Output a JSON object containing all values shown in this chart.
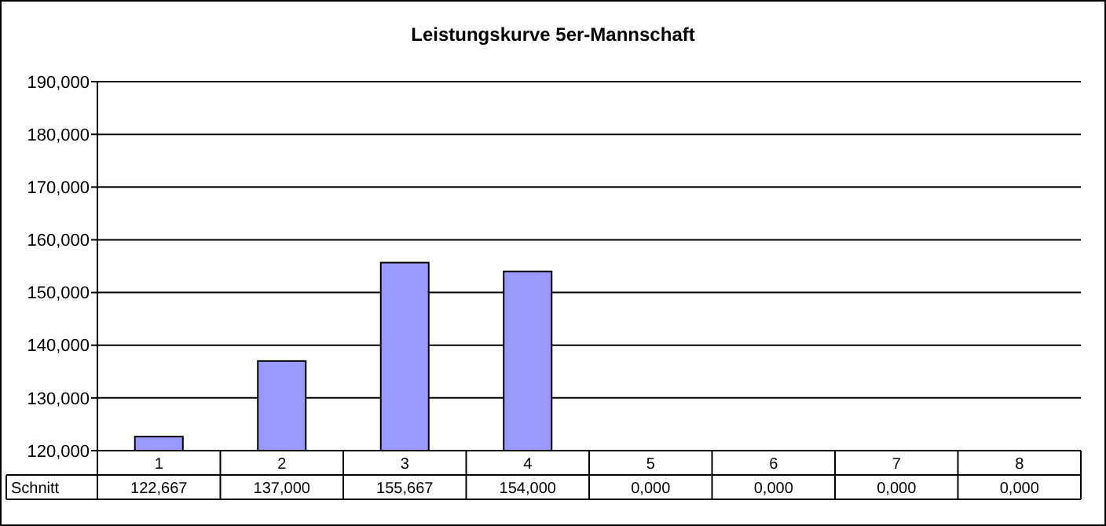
{
  "chart_data": {
    "type": "bar",
    "title": "Leistungskurve 5er-Mannschaft",
    "categories": [
      "1",
      "2",
      "3",
      "4",
      "5",
      "6",
      "7",
      "8"
    ],
    "series": [
      {
        "name": "Schnitt",
        "color": "#9999ff",
        "values": [
          122.667,
          137,
          155.667,
          154,
          null,
          null,
          null,
          null
        ],
        "value_labels": [
          "122,667",
          "137,000",
          "155,667",
          "154,000",
          "0,000",
          "0,000",
          "0,000",
          "0,000"
        ]
      }
    ],
    "ylim": [
      120,
      190
    ],
    "yticks": [
      {
        "value": 120,
        "label": "120,000"
      },
      {
        "value": 130,
        "label": "130,000"
      },
      {
        "value": 140,
        "label": "140,000"
      },
      {
        "value": 150,
        "label": "150,000"
      },
      {
        "value": 160,
        "label": "160,000"
      },
      {
        "value": 170,
        "label": "170,000"
      },
      {
        "value": 180,
        "label": "180,000"
      },
      {
        "value": 190,
        "label": "190,000"
      }
    ],
    "grid": "y",
    "legend": "bottom left"
  }
}
